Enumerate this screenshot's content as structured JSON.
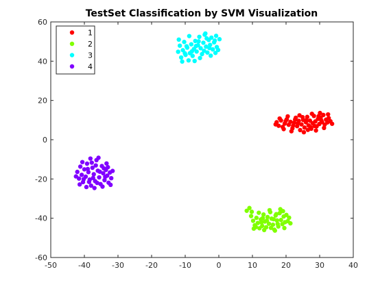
{
  "chart_data": {
    "type": "scatter",
    "title": "TestSet Classification by SVM Visualization",
    "xlabel": "",
    "ylabel": "",
    "xlim": [
      -50,
      40
    ],
    "ylim": [
      -60,
      60
    ],
    "xticks": [
      -50,
      -40,
      -30,
      -20,
      -10,
      0,
      10,
      20,
      30,
      40
    ],
    "yticks": [
      -60,
      -40,
      -20,
      0,
      20,
      40,
      60
    ],
    "grid": false,
    "legend_position": "top-left",
    "series": [
      {
        "name": "1",
        "color": "#ff0000",
        "points": [
          [
            17.2,
            8.9
          ],
          [
            17.8,
            7.1
          ],
          [
            18.5,
            9.8
          ],
          [
            19.0,
            6.5
          ],
          [
            19.6,
            8.2
          ],
          [
            20.2,
            10.4
          ],
          [
            20.8,
            7.6
          ],
          [
            21.3,
            9.1
          ],
          [
            21.9,
            5.8
          ],
          [
            22.4,
            8.7
          ],
          [
            22.9,
            11.2
          ],
          [
            23.3,
            6.9
          ],
          [
            23.8,
            9.6
          ],
          [
            24.2,
            4.9
          ],
          [
            24.6,
            7.8
          ],
          [
            25.1,
            10.1
          ],
          [
            25.5,
            6.2
          ],
          [
            25.9,
            8.9
          ],
          [
            26.3,
            11.6
          ],
          [
            26.7,
            7.3
          ],
          [
            27.1,
            9.7
          ],
          [
            27.5,
            5.6
          ],
          [
            27.9,
            8.4
          ],
          [
            28.3,
            12.1
          ],
          [
            28.7,
            9.3
          ],
          [
            29.1,
            6.8
          ],
          [
            29.5,
            10.6
          ],
          [
            29.9,
            8.0
          ],
          [
            30.3,
            11.3
          ],
          [
            30.7,
            9.0
          ],
          [
            31.1,
            12.6
          ],
          [
            31.5,
            7.7
          ],
          [
            31.9,
            10.2
          ],
          [
            32.3,
            8.8
          ],
          [
            32.7,
            11.0
          ],
          [
            33.2,
            9.4
          ],
          [
            33.7,
            8.1
          ],
          [
            18.1,
            10.8
          ],
          [
            19.3,
            5.4
          ],
          [
            20.5,
            11.9
          ],
          [
            21.6,
            4.3
          ],
          [
            22.7,
            10.3
          ],
          [
            24.0,
            12.4
          ],
          [
            25.3,
            3.8
          ],
          [
            26.5,
            5.0
          ],
          [
            27.7,
            13.2
          ],
          [
            28.9,
            4.7
          ],
          [
            30.1,
            13.6
          ],
          [
            31.3,
            6.0
          ],
          [
            32.5,
            12.9
          ],
          [
            23.5,
            8.3
          ],
          [
            26.0,
            9.9
          ],
          [
            28.5,
            7.0
          ],
          [
            30.5,
            9.8
          ],
          [
            16.9,
            7.8
          ],
          [
            19.9,
            9.5
          ],
          [
            22.1,
            7.2
          ],
          [
            24.9,
            11.5
          ],
          [
            27.3,
            6.4
          ],
          [
            29.7,
            12.0
          ]
        ]
      },
      {
        "name": "2",
        "color": "#80ff00",
        "points": [
          [
            8.3,
            -36.2
          ],
          [
            9.1,
            -34.8
          ],
          [
            9.6,
            -38.9
          ],
          [
            10.2,
            -41.3
          ],
          [
            10.7,
            -43.6
          ],
          [
            11.2,
            -39.8
          ],
          [
            11.6,
            -42.4
          ],
          [
            12.1,
            -45.1
          ],
          [
            12.5,
            -40.6
          ],
          [
            12.9,
            -43.9
          ],
          [
            13.3,
            -38.1
          ],
          [
            13.7,
            -41.7
          ],
          [
            14.1,
            -44.6
          ],
          [
            14.5,
            -39.4
          ],
          [
            14.9,
            -42.8
          ],
          [
            15.3,
            -36.9
          ],
          [
            15.7,
            -40.2
          ],
          [
            16.1,
            -43.3
          ],
          [
            16.5,
            -45.8
          ],
          [
            16.9,
            -38.6
          ],
          [
            17.3,
            -41.1
          ],
          [
            17.7,
            -44.2
          ],
          [
            18.1,
            -37.4
          ],
          [
            18.5,
            -40.9
          ],
          [
            18.9,
            -43.0
          ],
          [
            19.3,
            -39.1
          ],
          [
            19.7,
            -42.0
          ],
          [
            20.1,
            -38.3
          ],
          [
            20.5,
            -41.5
          ],
          [
            20.9,
            -39.7
          ],
          [
            21.3,
            -42.6
          ],
          [
            10.4,
            -45.3
          ],
          [
            11.9,
            -37.2
          ],
          [
            13.5,
            -46.0
          ],
          [
            15.1,
            -35.9
          ],
          [
            16.7,
            -46.3
          ],
          [
            18.3,
            -35.4
          ],
          [
            19.5,
            -45.0
          ],
          [
            14.3,
            -41.2
          ],
          [
            16.3,
            -40.5
          ],
          [
            12.7,
            -42.1
          ],
          [
            17.5,
            -42.9
          ],
          [
            9.8,
            -36.7
          ],
          [
            11.0,
            -44.5
          ],
          [
            15.5,
            -44.9
          ],
          [
            19.1,
            -36.4
          ],
          [
            13.1,
            -39.9
          ],
          [
            17.1,
            -37.9
          ]
        ]
      },
      {
        "name": "3",
        "color": "#00ffff",
        "points": [
          [
            -12.1,
            44.8
          ],
          [
            -11.6,
            47.9
          ],
          [
            -11.2,
            41.9
          ],
          [
            -10.7,
            45.6
          ],
          [
            -10.3,
            49.8
          ],
          [
            -9.9,
            43.2
          ],
          [
            -9.4,
            46.9
          ],
          [
            -9.0,
            40.4
          ],
          [
            -8.6,
            44.1
          ],
          [
            -8.2,
            48.6
          ],
          [
            -7.8,
            42.7
          ],
          [
            -7.4,
            46.2
          ],
          [
            -7.0,
            50.3
          ],
          [
            -6.6,
            44.9
          ],
          [
            -6.2,
            48.1
          ],
          [
            -5.8,
            52.4
          ],
          [
            -5.4,
            46.6
          ],
          [
            -5.0,
            43.6
          ],
          [
            -4.6,
            49.4
          ],
          [
            -4.2,
            53.5
          ],
          [
            -3.8,
            47.4
          ],
          [
            -3.4,
            44.4
          ],
          [
            -3.0,
            50.8
          ],
          [
            -2.6,
            48.3
          ],
          [
            -2.2,
            52.0
          ],
          [
            -1.8,
            46.0
          ],
          [
            -1.4,
            49.6
          ],
          [
            -1.0,
            44.2
          ],
          [
            -0.6,
            47.2
          ],
          [
            -0.2,
            45.7
          ],
          [
            0.2,
            51.2
          ],
          [
            -11.9,
            51.0
          ],
          [
            -10.9,
            39.8
          ],
          [
            -8.8,
            52.8
          ],
          [
            -7.2,
            40.1
          ],
          [
            -5.6,
            41.6
          ],
          [
            -4.0,
            54.1
          ],
          [
            -2.4,
            42.8
          ],
          [
            -0.8,
            52.9
          ],
          [
            -9.6,
            47.6
          ],
          [
            -6.8,
            47.7
          ],
          [
            -4.4,
            45.3
          ],
          [
            -2.8,
            46.7
          ],
          [
            -1.2,
            50.5
          ],
          [
            -8.0,
            45.0
          ],
          [
            -3.6,
            51.6
          ],
          [
            -10.1,
            44.0
          ],
          [
            -6.0,
            50.1
          ]
        ]
      },
      {
        "name": "4",
        "color": "#8000ff",
        "points": [
          [
            -42.1,
            -16.4
          ],
          [
            -41.6,
            -19.8
          ],
          [
            -41.2,
            -13.7
          ],
          [
            -40.8,
            -17.9
          ],
          [
            -40.4,
            -21.6
          ],
          [
            -40.0,
            -15.1
          ],
          [
            -39.6,
            -18.8
          ],
          [
            -39.2,
            -12.2
          ],
          [
            -38.8,
            -16.5
          ],
          [
            -38.4,
            -20.3
          ],
          [
            -38.0,
            -23.4
          ],
          [
            -37.6,
            -14.3
          ],
          [
            -37.2,
            -17.6
          ],
          [
            -36.8,
            -21.1
          ],
          [
            -36.4,
            -10.4
          ],
          [
            -36.0,
            -15.8
          ],
          [
            -35.6,
            -19.2
          ],
          [
            -35.2,
            -22.6
          ],
          [
            -34.8,
            -13.4
          ],
          [
            -34.4,
            -17.1
          ],
          [
            -34.0,
            -20.6
          ],
          [
            -33.6,
            -15.4
          ],
          [
            -33.2,
            -18.3
          ],
          [
            -32.8,
            -21.9
          ],
          [
            -32.4,
            -16.7
          ],
          [
            -32.0,
            -19.6
          ],
          [
            -31.6,
            -15.9
          ],
          [
            -42.5,
            -18.7
          ],
          [
            -41.4,
            -22.8
          ],
          [
            -40.6,
            -11.4
          ],
          [
            -39.4,
            -24.1
          ],
          [
            -38.2,
            -9.6
          ],
          [
            -37.0,
            -24.6
          ],
          [
            -35.8,
            -9.2
          ],
          [
            -34.6,
            -23.9
          ],
          [
            -33.4,
            -12.1
          ],
          [
            -32.2,
            -23.0
          ],
          [
            -39.0,
            -14.9
          ],
          [
            -37.4,
            -19.5
          ],
          [
            -35.4,
            -16.3
          ],
          [
            -33.8,
            -18.9
          ],
          [
            -38.6,
            -21.5
          ],
          [
            -36.6,
            -13.1
          ],
          [
            -34.2,
            -14.6
          ],
          [
            -40.2,
            -20.1
          ],
          [
            -36.2,
            -22.0
          ],
          [
            -33.0,
            -14.0
          ],
          [
            -37.8,
            -11.7
          ]
        ]
      }
    ]
  }
}
